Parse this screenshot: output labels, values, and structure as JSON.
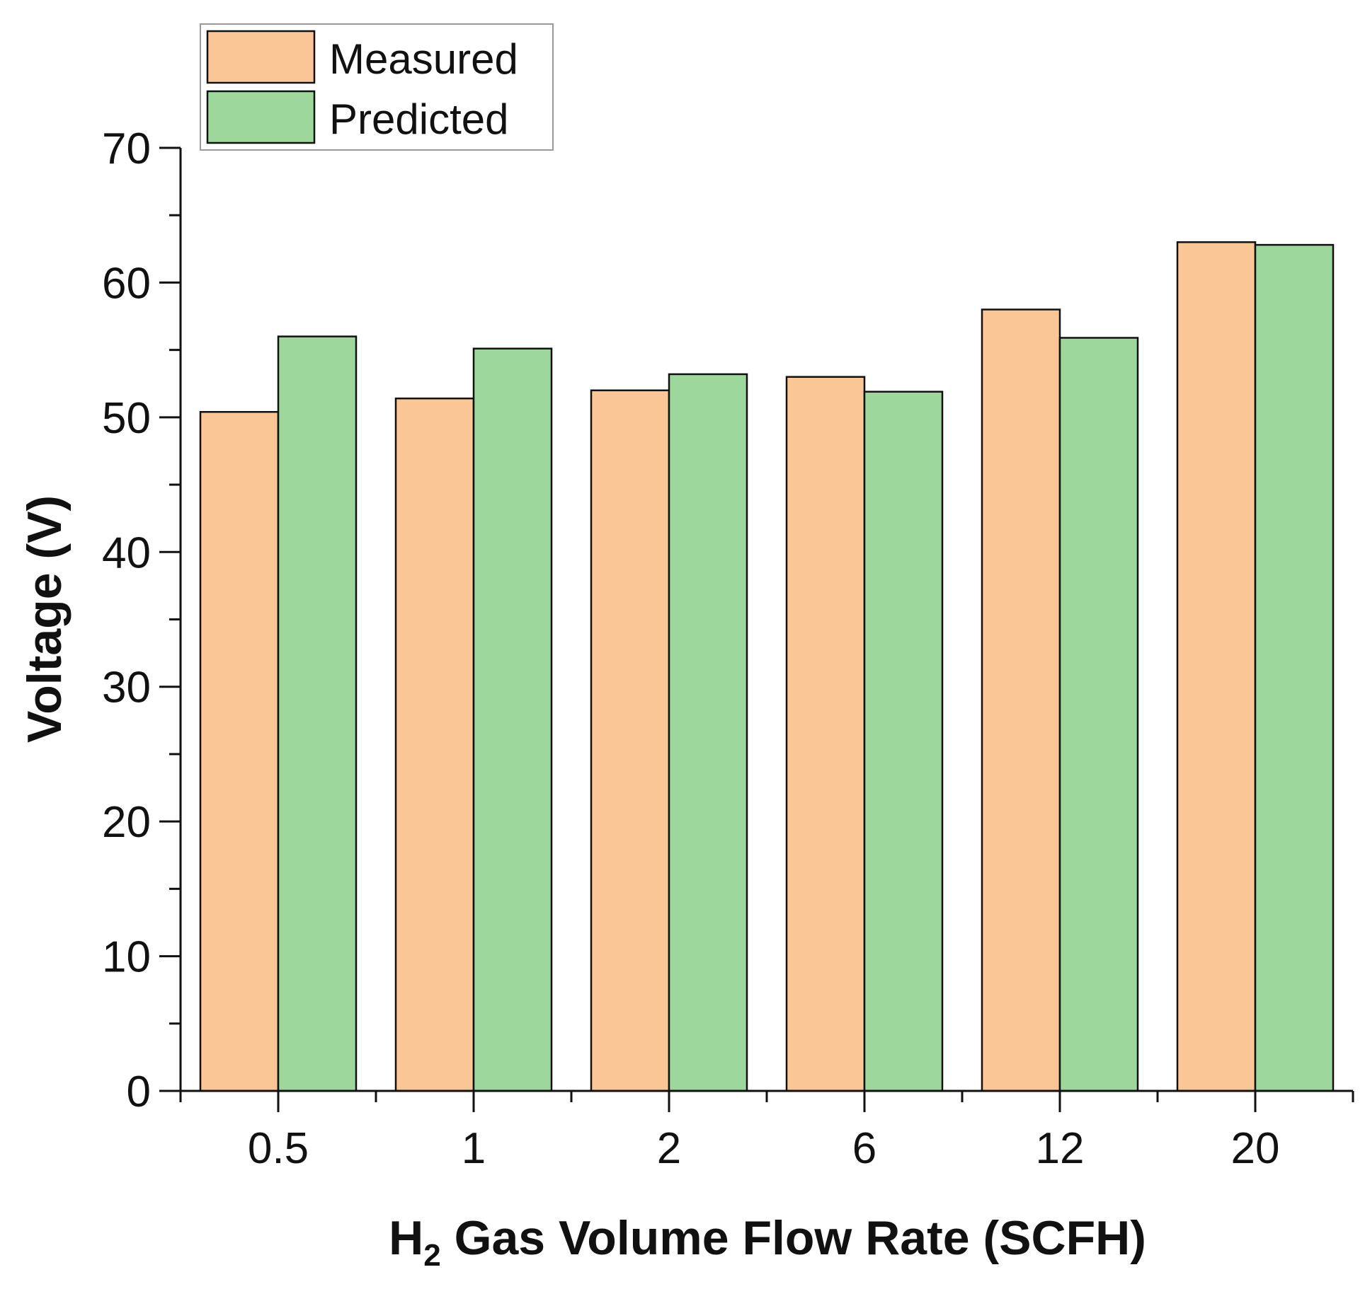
{
  "chart_data": {
    "type": "bar",
    "categories": [
      "0.5",
      "1",
      "2",
      "6",
      "12",
      "20"
    ],
    "series": [
      {
        "name": "Measured",
        "color": "#FBC695",
        "values": [
          50.4,
          51.4,
          52.0,
          53.0,
          58.0,
          63.0
        ]
      },
      {
        "name": "Predicted",
        "color": "#9DD79B",
        "values": [
          56.0,
          55.1,
          53.2,
          51.9,
          55.9,
          62.8
        ]
      }
    ],
    "ylim": [
      0,
      70
    ],
    "yticks": [
      "0",
      "10",
      "20",
      "30",
      "40",
      "50",
      "60",
      "70"
    ],
    "ylabel": "Voltage (V)",
    "xlabel": {
      "prefix": "H",
      "subscript": "2",
      "rest": " Gas Volume Flow Rate (SCFH)"
    },
    "legend_position": "top-left",
    "grid": false
  }
}
